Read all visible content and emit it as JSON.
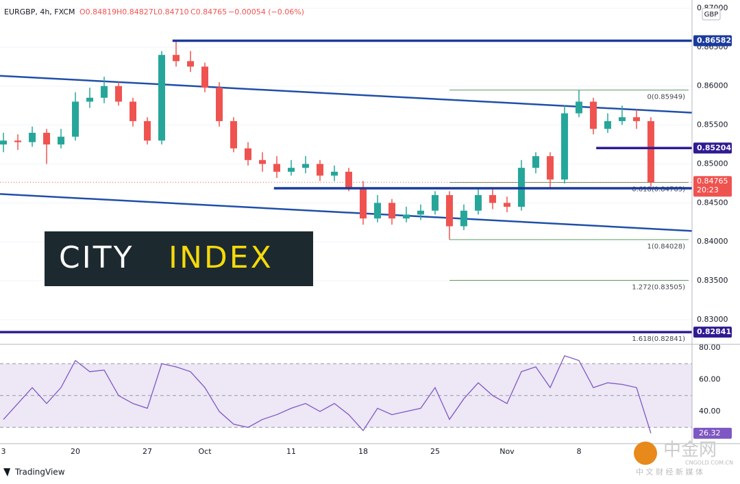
{
  "header": {
    "symbol": "EURGBP, 4h, FXCM",
    "ohlc": [
      "O0.84819",
      "H0.84827",
      "L0.84710",
      "C0.84765"
    ],
    "change": "−0.00054 (−0.06%)",
    "currency": "GBP"
  },
  "chart_data": [
    {
      "type": "candlestick",
      "xlim": [
        -0.24,
        47.86
      ],
      "ylim": [
        0.8271,
        0.87105
      ],
      "yticks": [
        {
          "value": 0.83,
          "label": "0.83000"
        },
        {
          "value": 0.835,
          "label": "0.83500"
        },
        {
          "value": 0.84,
          "label": "0.84000"
        },
        {
          "value": 0.845,
          "label": "0.84500"
        },
        {
          "value": 0.85,
          "label": "0.85000"
        },
        {
          "value": 0.855,
          "label": "0.85500"
        },
        {
          "value": 0.86,
          "label": "0.86000"
        },
        {
          "value": 0.865,
          "label": "0.86500"
        },
        {
          "value": 0.87,
          "label": "0.87000"
        }
      ],
      "up_color": "#26a69a",
      "down_color": "#ef5350",
      "x": [
        0,
        1,
        2,
        3,
        4,
        5,
        6,
        7,
        8,
        9,
        10,
        11,
        12,
        13,
        14,
        15,
        16,
        17,
        18,
        19,
        20,
        21,
        22,
        23,
        24,
        25,
        26,
        27,
        28,
        29,
        30,
        31,
        32,
        33,
        34,
        35,
        36,
        37,
        38,
        39,
        40,
        41,
        42,
        43,
        44,
        45
      ],
      "open": [
        0.8525,
        0.853,
        0.8528,
        0.854,
        0.8525,
        0.8535,
        0.858,
        0.8585,
        0.86,
        0.858,
        0.8555,
        0.853,
        0.864,
        0.8632,
        0.8625,
        0.8598,
        0.8555,
        0.852,
        0.8505,
        0.85,
        0.849,
        0.8495,
        0.85,
        0.8485,
        0.849,
        0.847,
        0.843,
        0.845,
        0.843,
        0.8435,
        0.844,
        0.846,
        0.842,
        0.844,
        0.846,
        0.845,
        0.8445,
        0.8495,
        0.851,
        0.848,
        0.8565,
        0.858,
        0.8545,
        0.8555,
        0.856,
        0.8555
      ],
      "high": [
        0.854,
        0.8538,
        0.8548,
        0.8545,
        0.8545,
        0.8592,
        0.8598,
        0.8612,
        0.8605,
        0.8585,
        0.856,
        0.8645,
        0.86582,
        0.8645,
        0.863,
        0.8605,
        0.856,
        0.8528,
        0.8515,
        0.851,
        0.8505,
        0.851,
        0.8505,
        0.8498,
        0.8495,
        0.8478,
        0.846,
        0.8455,
        0.8445,
        0.8448,
        0.8465,
        0.8465,
        0.8448,
        0.8468,
        0.847,
        0.8458,
        0.8505,
        0.8515,
        0.8515,
        0.8575,
        0.85949,
        0.8585,
        0.8565,
        0.8575,
        0.857,
        0.856
      ],
      "low": [
        0.8515,
        0.8518,
        0.8522,
        0.85,
        0.852,
        0.853,
        0.8572,
        0.8578,
        0.8575,
        0.8548,
        0.8525,
        0.8525,
        0.8625,
        0.8618,
        0.8592,
        0.8548,
        0.8515,
        0.8498,
        0.849,
        0.8482,
        0.8485,
        0.8488,
        0.8478,
        0.8478,
        0.8465,
        0.8422,
        0.8425,
        0.8422,
        0.8425,
        0.8428,
        0.8435,
        0.84028,
        0.8415,
        0.8435,
        0.8442,
        0.8438,
        0.844,
        0.8488,
        0.8468,
        0.8475,
        0.856,
        0.8538,
        0.854,
        0.855,
        0.8545,
        0.8471
      ],
      "close": [
        0.853,
        0.8528,
        0.854,
        0.8525,
        0.8535,
        0.858,
        0.8585,
        0.86,
        0.858,
        0.8555,
        0.853,
        0.864,
        0.8632,
        0.8625,
        0.8598,
        0.8555,
        0.852,
        0.8505,
        0.85,
        0.849,
        0.8495,
        0.85,
        0.8485,
        0.849,
        0.847,
        0.843,
        0.845,
        0.843,
        0.8435,
        0.844,
        0.846,
        0.842,
        0.844,
        0.846,
        0.845,
        0.8445,
        0.8495,
        0.851,
        0.848,
        0.8565,
        0.858,
        0.8545,
        0.8555,
        0.856,
        0.8555,
        0.84765
      ],
      "last_price": {
        "value": 0.84765,
        "countdown": "20:23",
        "color": "#ef5350"
      },
      "channels": [
        {
          "color": "#1f4fa8",
          "x": [
            -0.24,
            47.86
          ],
          "values": [
            0.86132,
            0.85658
          ]
        },
        {
          "color": "#1f4fa8",
          "x": [
            -0.24,
            47.86
          ],
          "values": [
            0.84614,
            0.8414
          ]
        }
      ],
      "hlines": [
        {
          "value": 0.86582,
          "start": 11.75,
          "color": "#1a3a9c"
        },
        {
          "value": 0.85204,
          "start": 41.2,
          "color": "#311b92"
        },
        {
          "value": 0.84688,
          "start": 18.8,
          "color": "#1a3a9c"
        },
        {
          "value": 0.82841,
          "start": -0.24,
          "color": "#311b92"
        }
      ],
      "fib": {
        "start": 31,
        "color": "#5e9a5e",
        "levels": [
          {
            "value": 0.85949,
            "label": "0(0.85949)"
          },
          {
            "value": 0.84763,
            "label": "0.618(0.84763)"
          },
          {
            "value": 0.84028,
            "label": "1(0.84028)"
          },
          {
            "value": 0.83505,
            "label": "1.272(0.83505)"
          },
          {
            "value": 0.82841,
            "label": "1.618(0.82841)"
          }
        ]
      }
    },
    {
      "type": "line",
      "xlim": [
        -0.24,
        47.86
      ],
      "ylim": [
        21.1,
        81.3
      ],
      "yticks": [
        {
          "value": 40,
          "label": "40.00"
        },
        {
          "value": 60,
          "label": "60.00"
        },
        {
          "value": 80,
          "label": "80.00"
        }
      ],
      "levels": [
        70,
        50,
        30
      ],
      "band_color": "#ede7f6",
      "xticks": [
        {
          "value": 0,
          "label": "3"
        },
        {
          "value": 5,
          "label": "20"
        },
        {
          "value": 10,
          "label": "27"
        },
        {
          "value": 14,
          "label": "Oct"
        },
        {
          "value": 20,
          "label": "11"
        },
        {
          "value": 25,
          "label": "18"
        },
        {
          "value": 30,
          "label": "25"
        },
        {
          "value": 35,
          "label": "Nov"
        },
        {
          "value": 40,
          "label": "8"
        }
      ],
      "x": [
        0,
        1,
        2,
        3,
        4,
        5,
        6,
        7,
        8,
        9,
        10,
        11,
        12,
        13,
        14,
        15,
        16,
        17,
        18,
        19,
        20,
        21,
        22,
        23,
        24,
        25,
        26,
        27,
        28,
        29,
        30,
        31,
        32,
        33,
        34,
        35,
        36,
        37,
        38,
        39,
        40,
        41,
        42,
        43,
        44,
        45
      ],
      "series": [
        {
          "color": "#7e57c2",
          "values": [
            35,
            45,
            55,
            45,
            55,
            72,
            65,
            66,
            50,
            45,
            42,
            70,
            68,
            65,
            55,
            40,
            32,
            30,
            35,
            38,
            42,
            45,
            40,
            45,
            38,
            28,
            42,
            38,
            40,
            42,
            55,
            35,
            48,
            58,
            50,
            45,
            65,
            68,
            55,
            75,
            72,
            55,
            58,
            57,
            55,
            26.32
          ]
        }
      ]
    }
  ],
  "logo": {
    "word1": "CITY",
    "word2": "INDEX"
  },
  "footer": "TradingView",
  "watermark": {
    "name": "中金网",
    "site": "CNGOLD.COM.CN",
    "tagline": "中 文 财 经 新 媒 体"
  }
}
